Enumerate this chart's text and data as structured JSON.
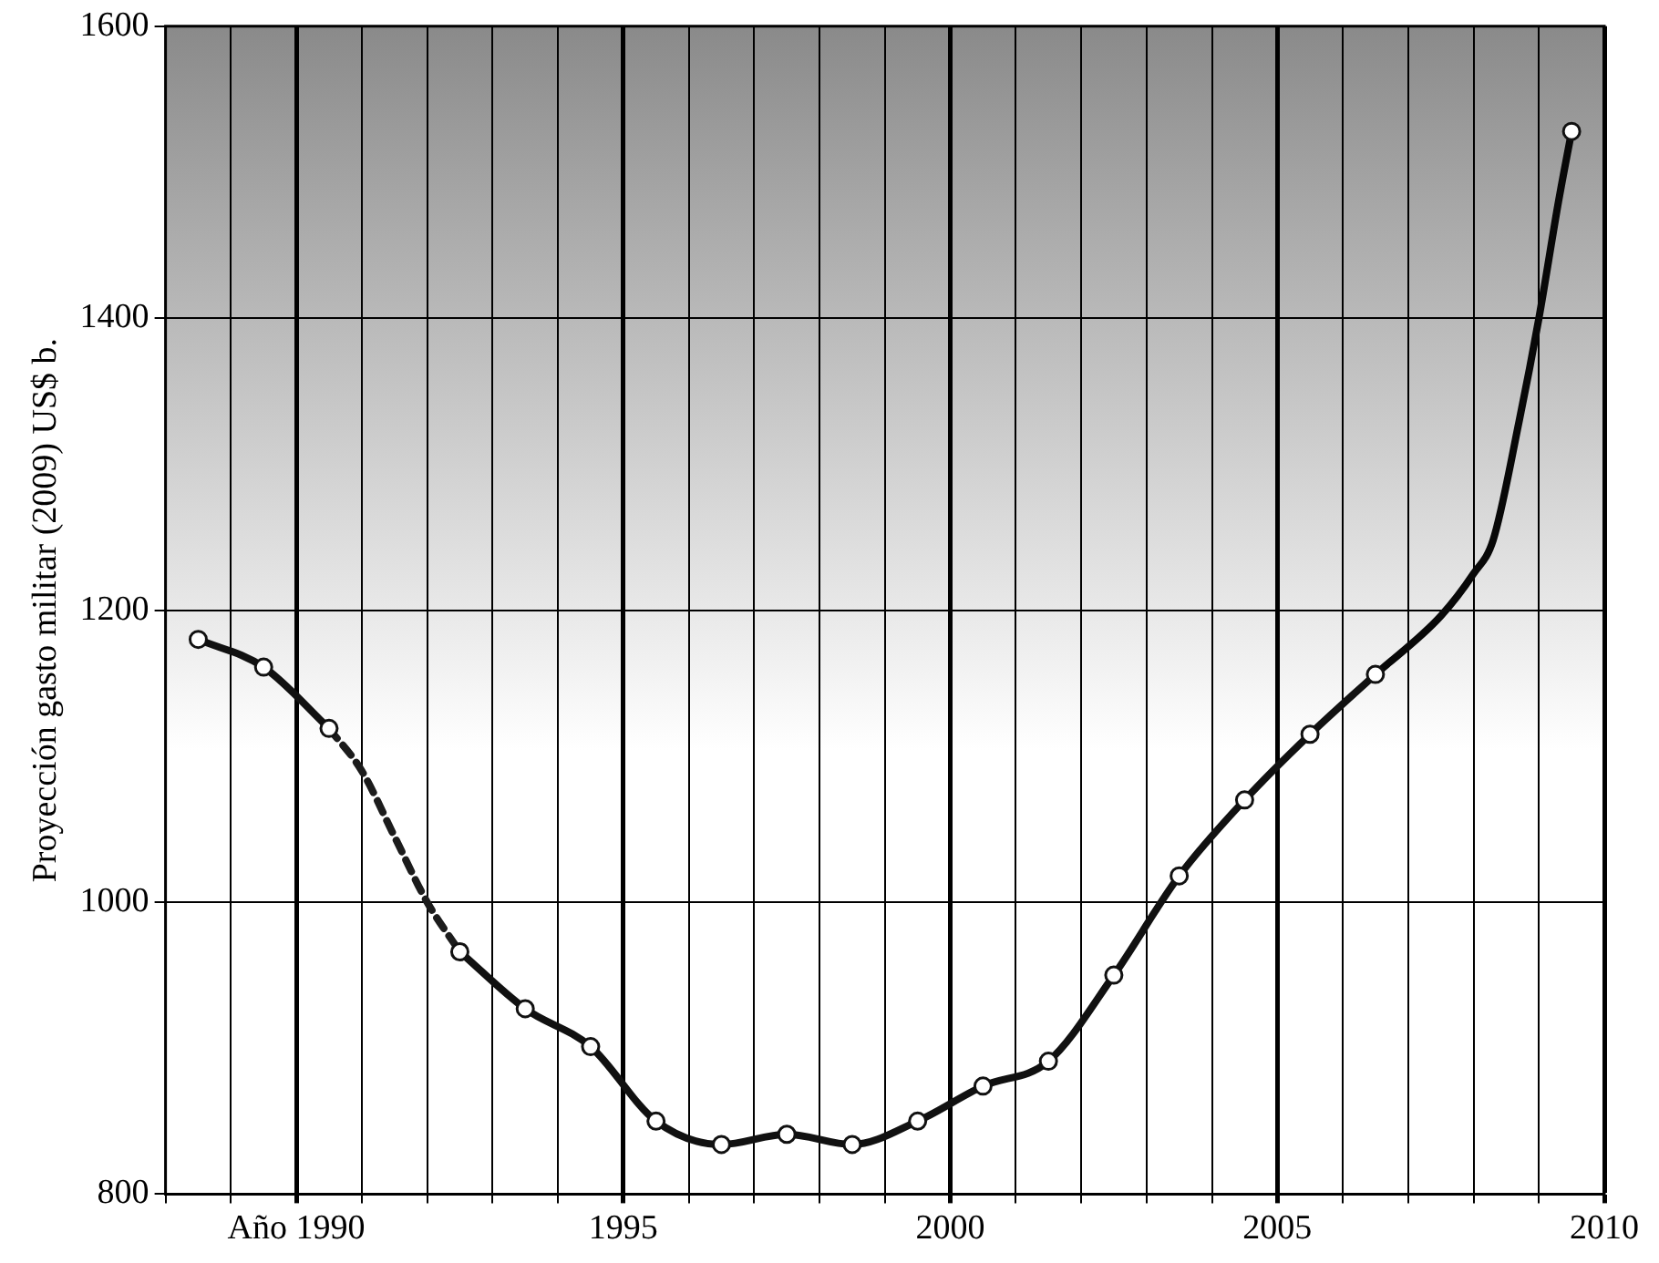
{
  "chart_data": {
    "type": "line",
    "ylabel": "Proyección gasto militar (2009) US$ b.",
    "xlim": [
      1988,
      2010
    ],
    "ylim": [
      800,
      1600
    ],
    "yticks": [
      800,
      1000,
      1200,
      1400,
      1600
    ],
    "xticks": [
      {
        "value": 1988,
        "label": null
      },
      {
        "value": 1989,
        "label": null
      },
      {
        "value": 1990,
        "label": "Año 1990"
      },
      {
        "value": 1991,
        "label": null
      },
      {
        "value": 1992,
        "label": null
      },
      {
        "value": 1993,
        "label": null
      },
      {
        "value": 1994,
        "label": null
      },
      1995,
      {
        "value": 1996,
        "label": null
      },
      {
        "value": 1997,
        "label": null
      },
      {
        "value": 1998,
        "label": null
      },
      {
        "value": 1999,
        "label": null
      },
      2000,
      {
        "value": 2001,
        "label": null
      },
      {
        "value": 2002,
        "label": null
      },
      {
        "value": 2003,
        "label": null
      },
      {
        "value": 2004,
        "label": null
      },
      2005,
      {
        "value": 2006,
        "label": null
      },
      {
        "value": 2007,
        "label": null
      },
      {
        "value": 2008,
        "label": null
      },
      {
        "value": 2009,
        "label": null
      },
      2010
    ],
    "grid": true,
    "legend": false,
    "series": [
      {
        "color": "#111111",
        "marker": "circle",
        "line_style": "solid",
        "x": [
          1988.5,
          1989.5,
          1990.5,
          1991.5,
          1992.5,
          1993.5,
          1994.5,
          1995.5,
          1996.5,
          1997.5,
          1998.5,
          1999.5,
          2000.5,
          2001.5,
          2002.5,
          2003.5,
          2004.5,
          2005.5,
          2006.5,
          2008,
          2009.5
        ],
        "values": [
          1180,
          1161,
          1119,
          null,
          966,
          927,
          901,
          850,
          834,
          841,
          834,
          850,
          874,
          891,
          950,
          1018,
          1070,
          1115,
          1156,
          null,
          1528
        ]
      },
      {
        "color": "#1c1c1c",
        "marker": "none",
        "line_style": "dashed",
        "x": [
          1990.5,
          1991,
          1991.5,
          1992,
          1992.5
        ],
        "values": [
          1119,
          1090,
          1045,
          1000,
          966
        ]
      },
      {
        "color": "#080808",
        "marker": "none",
        "line_style": "solid",
        "x": [
          2006.5,
          2007.5,
          2008,
          2008.3,
          2008.7,
          2009,
          2009.3,
          2009.5
        ],
        "values": [
          1156,
          1196,
          1225,
          1248,
          1330,
          1400,
          1480,
          1528
        ]
      }
    ]
  }
}
